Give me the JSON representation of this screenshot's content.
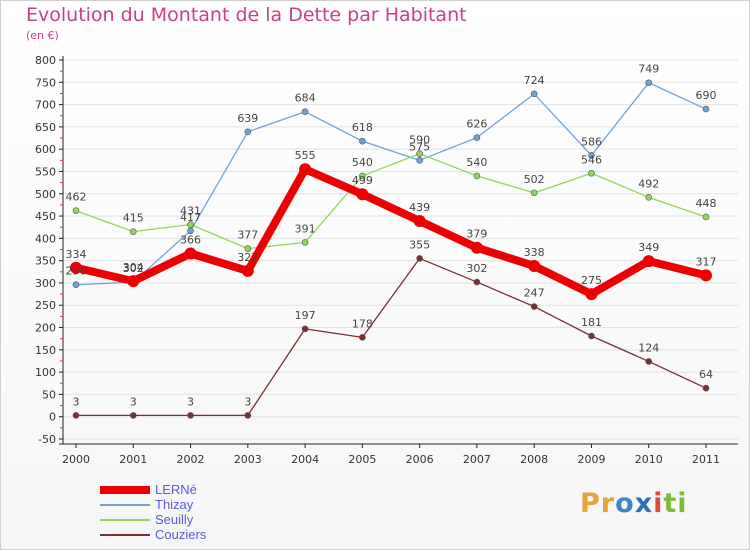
{
  "title": "Evolution du Montant de la Dette par Habitant",
  "unit": "(en €)",
  "logo": {
    "letters": [
      "P",
      "r",
      "o",
      "x",
      "i",
      "t",
      "i"
    ],
    "colors": [
      "#e8a23a",
      "#e8a23a",
      "#3b86c6",
      "#2f6fb4",
      "#d94a3a",
      "#7dbb3b",
      "#7dbb3b"
    ]
  },
  "chart_data": {
    "type": "line",
    "title": "Evolution du Montant de la Dette par Habitant",
    "ylabel": "(en €)",
    "xlabel": "",
    "x": [
      "2000",
      "2001",
      "2002",
      "2003",
      "2004",
      "2005",
      "2006",
      "2007",
      "2008",
      "2009",
      "2010",
      "2011"
    ],
    "ylim": [
      -50,
      800
    ],
    "yticks": [
      -50,
      0,
      50,
      100,
      150,
      200,
      250,
      300,
      350,
      400,
      450,
      500,
      550,
      600,
      650,
      700,
      750,
      800
    ],
    "grid": true,
    "legend_position": "bottom-left",
    "series": [
      {
        "name": "Thizay",
        "color": "#6fa3d8",
        "values": [
          296,
          302,
          417,
          639,
          684,
          618,
          575,
          626,
          724,
          586,
          749,
          690
        ]
      },
      {
        "name": "Seuilly",
        "color": "#8fd855",
        "values": [
          462,
          415,
          431,
          377,
          391,
          540,
          590,
          540,
          502,
          546,
          492,
          448
        ]
      },
      {
        "name": "Couziers",
        "color": "#7a3030",
        "values": [
          3,
          3,
          3,
          3,
          197,
          178,
          355,
          302,
          247,
          181,
          124,
          64
        ]
      },
      {
        "name": "LERNé",
        "color": "#ee0000",
        "values": [
          334,
          304,
          366,
          327,
          555,
          499,
          439,
          379,
          338,
          275,
          349,
          317
        ]
      }
    ],
    "labels": [
      {
        "series": "Thizay",
        "values": [
          296,
          302,
          417,
          639,
          684,
          618,
          575,
          626,
          724,
          586,
          749,
          690
        ]
      },
      {
        "series": "Seuilly",
        "values": [
          462,
          415,
          431,
          377,
          391,
          540,
          590,
          540,
          502,
          546,
          492,
          448
        ]
      },
      {
        "series": "Couziers",
        "values": [
          3,
          3,
          3,
          3,
          197,
          178,
          355,
          302,
          247,
          181,
          124,
          64
        ]
      },
      {
        "series": "LERNé",
        "values": [
          334,
          304,
          366,
          327,
          555,
          499,
          439,
          379,
          338,
          275,
          349,
          317
        ]
      }
    ]
  },
  "legend": [
    {
      "label": "LERNé",
      "color": "#ee0000",
      "thick": true
    },
    {
      "label": "Thizay",
      "color": "#6fa3d8",
      "thick": false
    },
    {
      "label": "Seuilly",
      "color": "#8fd855",
      "thick": false
    },
    {
      "label": "Couziers",
      "color": "#7a3030",
      "thick": false
    }
  ],
  "legend_text_color": "#5a5adc"
}
